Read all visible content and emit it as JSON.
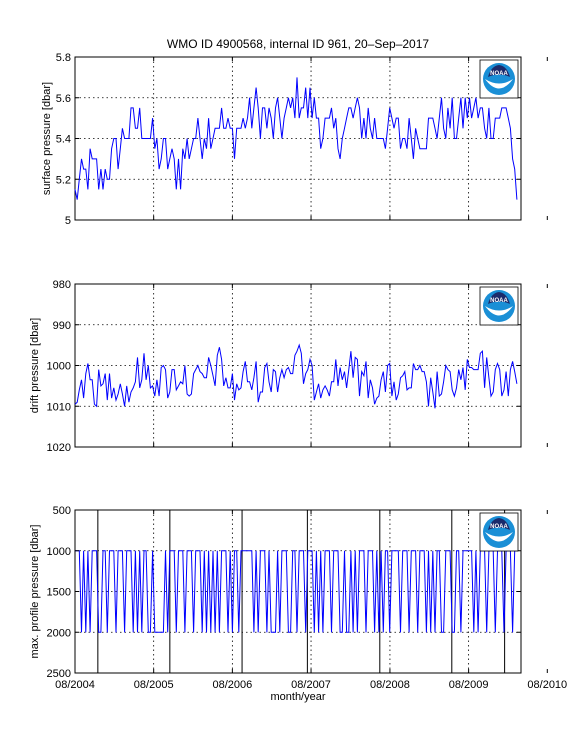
{
  "figure": {
    "title": "WMO ID 4900568, internal ID 961, 20–Sep–2017",
    "xlabel": "month/year",
    "x_tick_labels": [
      "08/2004",
      "08/2005",
      "08/2006",
      "08/2007",
      "08/2008",
      "08/2009",
      "08/2010"
    ],
    "logo": {
      "name": "noaa-logo-icon",
      "text": "NOAA",
      "colors": {
        "outer": "#1a8fd6",
        "inner": "#1b2a6b",
        "white": "#ffffff"
      }
    }
  },
  "chart_data": [
    {
      "type": "line",
      "ylabel": "surface pressure [dbar]",
      "ylim": [
        5,
        5.8
      ],
      "yticks": [
        5,
        5.2,
        5.4,
        5.6,
        5.8
      ],
      "ytick_labels": [
        "5",
        "5.2",
        "5.4",
        "5.6",
        "5.8"
      ],
      "y_reversed": false,
      "x_range": [
        "2004-08-01",
        "2010-04-01"
      ],
      "grid": true,
      "series_color": "#0000ff",
      "x": [
        "2004-08-01",
        "2004-10-01",
        "2004-12-01",
        "2005-02-01",
        "2005-04-01",
        "2005-06-01",
        "2005-08-01",
        "2005-10-01",
        "2005-12-01",
        "2006-02-01",
        "2006-04-01",
        "2006-06-01",
        "2006-08-01",
        "2006-10-01",
        "2006-12-01",
        "2007-02-01",
        "2007-04-01",
        "2007-06-01",
        "2007-08-01",
        "2007-10-01",
        "2007-12-01",
        "2008-02-01",
        "2008-04-01",
        "2008-06-01",
        "2008-08-01",
        "2008-10-01",
        "2008-12-01",
        "2009-02-01",
        "2009-04-01",
        "2009-06-01",
        "2009-08-01",
        "2009-10-01",
        "2009-12-01",
        "2010-02-01",
        "2010-03-15"
      ],
      "values": [
        5.1,
        5.25,
        5.2,
        5.3,
        5.45,
        5.5,
        5.35,
        5.3,
        5.25,
        5.4,
        5.45,
        5.5,
        5.4,
        5.5,
        5.55,
        5.45,
        5.5,
        5.6,
        5.55,
        5.45,
        5.4,
        5.5,
        5.5,
        5.45,
        5.45,
        5.4,
        5.45,
        5.45,
        5.5,
        5.45,
        5.55,
        5.5,
        5.5,
        5.55,
        5.1
      ]
    },
    {
      "type": "line",
      "ylabel": "drift pressure [dbar]",
      "ylim": [
        980,
        1020
      ],
      "yticks": [
        980,
        990,
        1000,
        1010,
        1020
      ],
      "ytick_labels": [
        "980",
        "990",
        "1000",
        "1010",
        "1020"
      ],
      "y_reversed": true,
      "x_range": [
        "2004-08-01",
        "2010-04-01"
      ],
      "grid": true,
      "series_color": "#0000ff",
      "x": [
        "2004-08-01",
        "2004-10-01",
        "2004-12-01",
        "2005-02-01",
        "2005-04-01",
        "2005-06-01",
        "2005-08-01",
        "2005-10-01",
        "2005-12-01",
        "2006-02-01",
        "2006-04-01",
        "2006-06-01",
        "2006-08-01",
        "2006-10-01",
        "2006-12-01",
        "2007-02-01",
        "2007-04-01",
        "2007-06-01",
        "2007-08-01",
        "2007-10-01",
        "2007-12-01",
        "2008-02-01",
        "2008-04-01",
        "2008-06-01",
        "2008-08-01",
        "2008-10-01",
        "2008-12-01",
        "2009-02-01",
        "2009-04-01",
        "2009-06-01",
        "2009-08-01",
        "2009-10-01",
        "2009-12-01",
        "2010-02-01",
        "2010-03-15"
      ],
      "values": [
        1005,
        1004,
        1006,
        1003,
        1007,
        1001,
        1003,
        1004,
        1002,
        1005,
        1003,
        1000,
        1006,
        1003,
        1004,
        1002,
        1001,
        999,
        1004,
        1003,
        1002,
        1001,
        1003,
        1005,
        1004,
        1006,
        1003,
        1007,
        1005,
        1004,
        1003,
        1001,
        1004,
        1003,
        1003
      ]
    },
    {
      "type": "line",
      "ylabel": "max. profile pressure [dbar]",
      "ylim": [
        500,
        2500
      ],
      "yticks": [
        500,
        1000,
        1500,
        2000,
        2500
      ],
      "ytick_labels": [
        "500",
        "1000",
        "1500",
        "2000",
        "2500"
      ],
      "y_reversed": true,
      "x_range": [
        "2004-08-01",
        "2010-04-01"
      ],
      "grid": true,
      "series_color": "#0000ff",
      "profile_pressures": [
        1000,
        2000
      ],
      "cycle_days": 10,
      "cycle_sequence": [
        1000,
        1000,
        1000,
        2000
      ],
      "x_span": [
        "2004-08-01",
        "2010-03-15"
      ],
      "vertical_markers": [
        "2004-11-15",
        "2005-10-15",
        "2006-09-15",
        "2007-07-15",
        "2008-06-15",
        "2009-05-15",
        "2010-01-15"
      ]
    }
  ]
}
